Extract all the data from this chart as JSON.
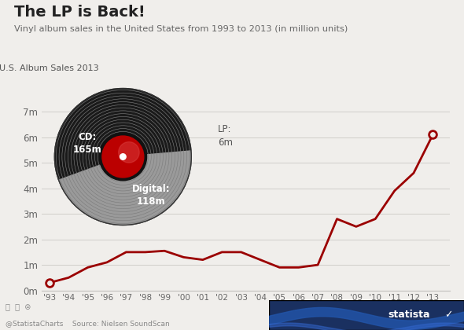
{
  "title": "The LP is Back!",
  "subtitle": "Vinyl album sales in the United States from 1993 to 2013 (in million units)",
  "years": [
    1993,
    1994,
    1995,
    1996,
    1997,
    1998,
    1999,
    2000,
    2001,
    2002,
    2003,
    2004,
    2005,
    2006,
    2007,
    2008,
    2009,
    2010,
    2011,
    2012,
    2013
  ],
  "values": [
    0.3,
    0.5,
    0.9,
    1.1,
    1.5,
    1.5,
    1.55,
    1.3,
    1.2,
    1.5,
    1.5,
    1.2,
    0.9,
    0.9,
    1.0,
    2.8,
    2.5,
    2.8,
    3.9,
    4.6,
    6.1
  ],
  "line_color": "#9B0000",
  "bg_color": "#f0eeeb",
  "ylabel_ticks": [
    "0m",
    "1m",
    "2m",
    "3m",
    "4m",
    "5m",
    "6m",
    "7m"
  ],
  "ylabel_values": [
    0,
    1,
    2,
    3,
    4,
    5,
    6,
    7
  ],
  "inset_title": "U.S. Album Sales 2013",
  "inset_cd": "CD:\n165m",
  "inset_digital": "Digital:\n118m",
  "inset_lp": "LP:\n6m",
  "footer_bg": "#e8e6e3",
  "footer_text": "@StatistaCharts    Source: Nielsen SoundScan",
  "statista_bg": "#1a3060"
}
